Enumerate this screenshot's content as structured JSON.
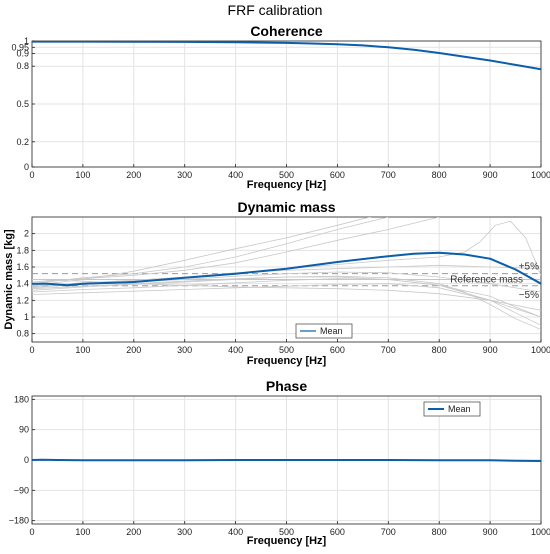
{
  "figure": {
    "title": "FRF calibration"
  },
  "chart_data": [
    {
      "type": "line",
      "title": "Coherence",
      "xlabel": "Frequency [Hz]",
      "ylabel": "",
      "xlim": [
        0,
        1000
      ],
      "ylim": [
        0,
        1
      ],
      "xticks": [
        0,
        100,
        200,
        300,
        400,
        500,
        600,
        700,
        800,
        900,
        1000
      ],
      "yticks": [
        0,
        0.2,
        0.5,
        0.8,
        0.9,
        0.95,
        1
      ],
      "grid": true,
      "series": [
        {
          "x": [
            0,
            100,
            200,
            300,
            400,
            500,
            550,
            600,
            650,
            700,
            750,
            800,
            850,
            900,
            950,
            1000
          ],
          "y": [
            0.995,
            0.995,
            0.994,
            0.993,
            0.99,
            0.985,
            0.98,
            0.975,
            0.965,
            0.95,
            0.93,
            0.905,
            0.875,
            0.845,
            0.81,
            0.775
          ],
          "color": "#0b5ea8"
        }
      ]
    },
    {
      "type": "line",
      "title": "Dynamic mass",
      "xlabel": "Frequency [Hz]",
      "ylabel": "Dynamic mass [kg]",
      "xlim": [
        0,
        1000
      ],
      "ylim": [
        0.7,
        2.2
      ],
      "xticks": [
        0,
        100,
        200,
        300,
        400,
        500,
        600,
        700,
        800,
        900,
        1000
      ],
      "yticks": [
        0.8,
        1,
        1.2,
        1.4,
        1.6,
        1.8,
        2
      ],
      "grid": true,
      "legend": {
        "location": "bottom-center",
        "entries": [
          "Mean"
        ]
      },
      "reference": {
        "value": 1.45,
        "label": "Reference mass",
        "upper_label": "+5%",
        "lower_label": "−5%",
        "upper": 1.52,
        "lower": 1.375
      },
      "series": [
        {
          "name": "Mean",
          "x": [
            0,
            30,
            70,
            100,
            200,
            300,
            400,
            500,
            600,
            700,
            750,
            800,
            850,
            900,
            950,
            1000
          ],
          "y": [
            1.4,
            1.4,
            1.38,
            1.4,
            1.42,
            1.47,
            1.52,
            1.58,
            1.66,
            1.73,
            1.76,
            1.77,
            1.75,
            1.7,
            1.57,
            1.4
          ],
          "color": "#0b5ea8"
        }
      ],
      "individual_measurements": [
        {
          "x": [
            0,
            100,
            200,
            300,
            400,
            500,
            600,
            650,
            700
          ],
          "y": [
            1.38,
            1.45,
            1.55,
            1.68,
            1.82,
            1.95,
            2.1,
            2.18,
            2.25
          ]
        },
        {
          "x": [
            0,
            100,
            200,
            300,
            400,
            500,
            600,
            700
          ],
          "y": [
            1.4,
            1.47,
            1.52,
            1.6,
            1.72,
            1.88,
            2.05,
            2.2
          ]
        },
        {
          "x": [
            0,
            100,
            200,
            300,
            400,
            500,
            600,
            700,
            800
          ],
          "y": [
            1.42,
            1.46,
            1.5,
            1.56,
            1.65,
            1.78,
            1.92,
            2.05,
            2.2
          ]
        },
        {
          "x": [
            0,
            100,
            200,
            300,
            400,
            500,
            600,
            700,
            800,
            850,
            880,
            910,
            940,
            970,
            1000
          ],
          "y": [
            1.35,
            1.4,
            1.43,
            1.47,
            1.52,
            1.58,
            1.63,
            1.68,
            1.72,
            1.78,
            1.9,
            2.1,
            2.15,
            1.95,
            1.5
          ]
        },
        {
          "x": [
            0,
            100,
            200,
            300,
            400,
            500,
            600,
            700,
            800,
            900,
            1000
          ],
          "y": [
            1.37,
            1.41,
            1.44,
            1.48,
            1.53,
            1.56,
            1.58,
            1.6,
            1.62,
            1.6,
            1.58
          ]
        },
        {
          "x": [
            0,
            100,
            200,
            300,
            400,
            500,
            600,
            700,
            800,
            900,
            1000
          ],
          "y": [
            1.36,
            1.39,
            1.42,
            1.45,
            1.49,
            1.52,
            1.54,
            1.53,
            1.48,
            1.4,
            1.3
          ]
        },
        {
          "x": [
            0,
            100,
            200,
            300,
            400,
            500,
            600,
            700,
            800,
            900,
            950,
            1000
          ],
          "y": [
            1.34,
            1.37,
            1.4,
            1.43,
            1.46,
            1.48,
            1.48,
            1.45,
            1.38,
            1.25,
            1.12,
            1.0
          ]
        },
        {
          "x": [
            0,
            100,
            200,
            300,
            400,
            500,
            600,
            700,
            800,
            850,
            900,
            950,
            1000
          ],
          "y": [
            1.32,
            1.36,
            1.39,
            1.42,
            1.45,
            1.48,
            1.49,
            1.47,
            1.4,
            1.3,
            1.15,
            0.98,
            0.85
          ]
        },
        {
          "x": [
            0,
            100,
            200,
            300,
            400,
            500,
            600,
            700,
            800,
            900,
            950,
            1000
          ],
          "y": [
            1.3,
            1.33,
            1.35,
            1.38,
            1.41,
            1.44,
            1.46,
            1.45,
            1.38,
            1.2,
            1.05,
            0.9
          ]
        },
        {
          "x": [
            0,
            100,
            200,
            300,
            400,
            500,
            600,
            700,
            800,
            900,
            1000
          ],
          "y": [
            1.27,
            1.29,
            1.31,
            1.33,
            1.35,
            1.37,
            1.39,
            1.4,
            1.35,
            1.2,
            1.0
          ]
        },
        {
          "x": [
            0,
            100,
            200,
            300,
            400,
            500,
            600,
            700,
            800,
            900,
            1000
          ],
          "y": [
            1.45,
            1.43,
            1.4,
            1.38,
            1.36,
            1.35,
            1.34,
            1.32,
            1.28,
            1.2,
            1.08
          ]
        }
      ]
    },
    {
      "type": "line",
      "title": "Phase",
      "xlabel": "Frequency [Hz]",
      "ylabel": "",
      "xlim": [
        0,
        1000
      ],
      "ylim": [
        -190,
        190
      ],
      "xticks": [
        0,
        100,
        200,
        300,
        400,
        500,
        600,
        700,
        800,
        900,
        1000
      ],
      "yticks": [
        -180,
        -90,
        0,
        90,
        180
      ],
      "grid": true,
      "legend": {
        "location": "top-right",
        "entries": [
          "Mean"
        ]
      },
      "series": [
        {
          "name": "Mean",
          "x": [
            0,
            20,
            50,
            100,
            200,
            300,
            400,
            500,
            600,
            700,
            800,
            900,
            950,
            1000
          ],
          "y": [
            0,
            1,
            0,
            -1,
            -1,
            -0.5,
            0,
            0,
            0,
            0,
            -0.5,
            -1,
            -2,
            -3
          ],
          "color": "#0b5ea8"
        }
      ]
    }
  ]
}
